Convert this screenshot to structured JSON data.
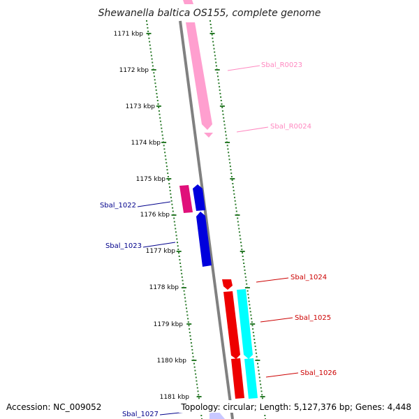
{
  "title": "Shewanella baltica OS155, complete genome",
  "footer": {
    "accession": "Accession: NC_009052",
    "summary": "Topology: circular; Length: 5,127,376 bp; Genes: 4,448"
  },
  "colors": {
    "backbone": "#808080",
    "ticks": "#2a7a2a",
    "trna": "#ff9fcf",
    "blue_gene": "#0000dd",
    "magenta_gene": "#e0107a",
    "red_gene": "#ee0000",
    "cyan_gene": "#00ffff",
    "label_pink": "#ff88c0",
    "label_blue": "#00008b",
    "label_red": "#cc0000"
  },
  "kbp_labels": [
    "1171 kbp",
    "1172 kbp",
    "1173 kbp",
    "1174 kbp",
    "1175 kbp",
    "1176 kbp",
    "1177 kbp",
    "1178 kbp",
    "1179 kbp",
    "1180 kbp",
    "1181 kbp"
  ],
  "gene_labels": [
    {
      "text": "Sbal_R0023",
      "color": "#ff88c0"
    },
    {
      "text": "Sbal_R0024",
      "color": "#ff88c0"
    },
    {
      "text": "Sbal_1022",
      "color": "#00008b"
    },
    {
      "text": "Sbal_1023",
      "color": "#00008b"
    },
    {
      "text": "Sbal_1024",
      "color": "#cc0000"
    },
    {
      "text": "Sbal_1025",
      "color": "#cc0000"
    },
    {
      "text": "Sbal_1026",
      "color": "#cc0000"
    },
    {
      "text": "Sbal_1027",
      "color": "#00008b"
    }
  ]
}
